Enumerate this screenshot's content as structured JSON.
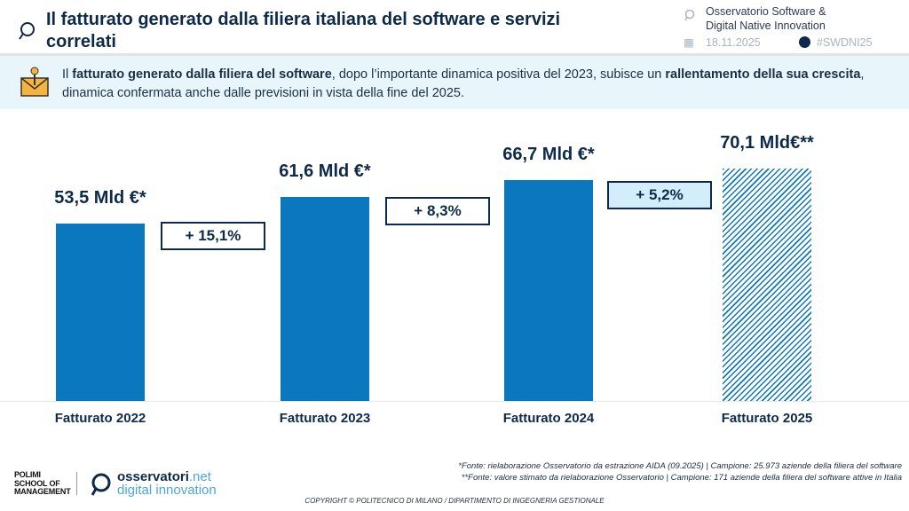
{
  "header": {
    "title": "Il fatturato generato dalla filiera italiana del software e servizi correlati",
    "observatory_line1": "Osservatorio Software &",
    "observatory_line2": "Digital Native Innovation",
    "date": "18.11.2025",
    "hashtag": "#SWDNI25"
  },
  "banner": {
    "t1": "Il ",
    "b1": "fatturato generato dalla filiera del software",
    "t2": ", dopo l’importante dinamica positiva del 2023, subisce un ",
    "b2": "rallentamento della sua crescita",
    "t3": ", dinamica confermata anche dalle previsioni in vista della fine del 2025."
  },
  "chart_data": {
    "type": "bar",
    "categories": [
      "Fatturato 2022",
      "Fatturato 2023",
      "Fatturato 2024",
      "Fatturato 2025"
    ],
    "values": [
      53.5,
      61.6,
      66.7,
      70.1
    ],
    "value_labels": [
      "53,5 Mld €*",
      "61,6 Mld €*",
      "66,7 Mld €*",
      "70,1 Mld€**"
    ],
    "growth_labels": [
      "+ 15,1%",
      "+ 8,3%",
      "+ 5,2%"
    ],
    "estimated": [
      false,
      false,
      false,
      true
    ],
    "color": "#0a77bf",
    "ylim": [
      0,
      120
    ],
    "grid": false
  },
  "footer": {
    "note1": "*Fonte: rielaborazione Osservatorio da estrazione AIDA (09.2025) | Campione: 25.973 aziende della filiera del software",
    "note2": "**Fonte: valore stimato da rielaborazione Osservatorio | Campione: 171 aziende della filiera del software attive in Italia",
    "copyright": "COPYRIGHT © POLITECNICO DI MILANO / DIPARTIMENTO DI INGEGNERIA GESTIONALE",
    "logo1": "POLIMI SCHOOL OF MANAGEMENT",
    "logo2a": "osservatori",
    "logo2b": ".net",
    "logo2c": "digital innovation"
  }
}
